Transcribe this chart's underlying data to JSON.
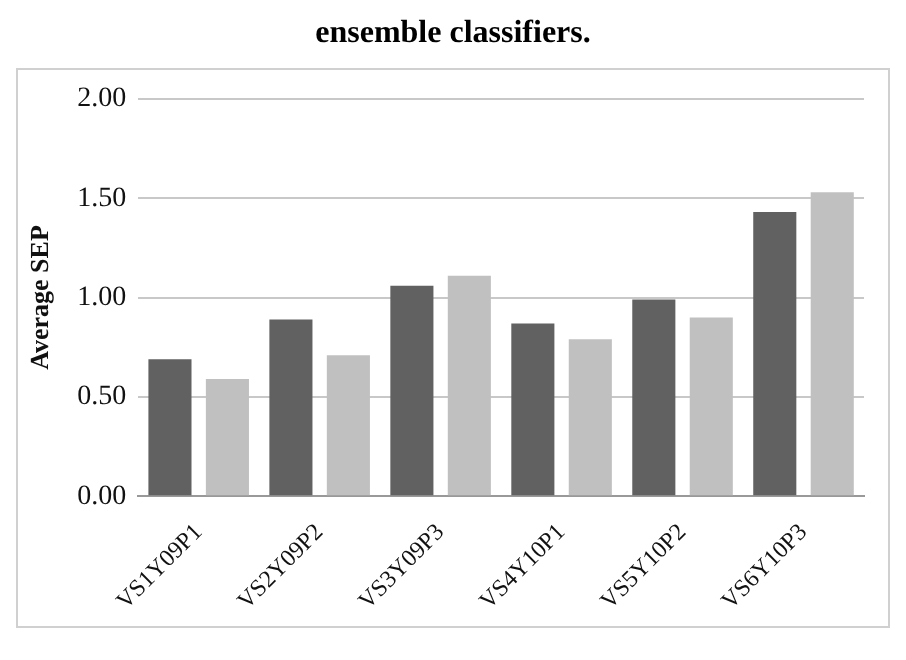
{
  "chart_data": {
    "type": "bar",
    "title": "ensemble classifiers.",
    "ylabel": "Average SEP",
    "categories": [
      "VS1Y09P1",
      "VS2Y09P2",
      "VS3Y09P3",
      "VS4Y10P1",
      "VS5Y10P2",
      "VS6Y10P3"
    ],
    "series": [
      {
        "color": "#616161",
        "values": [
          0.69,
          0.89,
          1.06,
          0.87,
          0.99,
          1.43
        ]
      },
      {
        "color": "#c0c0c0",
        "values": [
          0.59,
          0.71,
          1.11,
          0.79,
          0.9,
          1.53
        ]
      }
    ],
    "ylim": [
      0,
      2
    ],
    "yticks": [
      {
        "value": 0,
        "label": "0.00"
      },
      {
        "value": 0.5,
        "label": "0.50"
      },
      {
        "value": 1,
        "label": "1.00"
      },
      {
        "value": 1.5,
        "label": "1.50"
      },
      {
        "value": 2,
        "label": "2.00"
      }
    ],
    "grid": "y",
    "legend": false
  }
}
